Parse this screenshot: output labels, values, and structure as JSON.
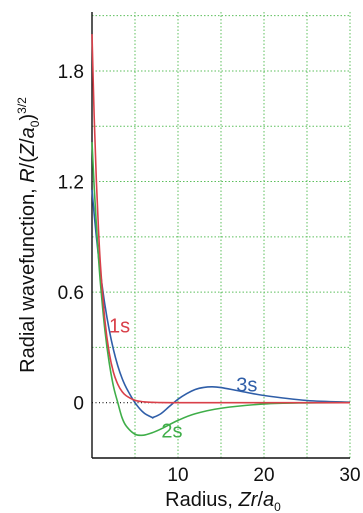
{
  "chart_data": {
    "type": "line",
    "xlabel": {
      "prefix": "Radius, ",
      "italic": "Zr",
      "mid": "/",
      "italic2": "a",
      "sub": "0"
    },
    "ylabel": {
      "prefix": "Radial wavefunction, ",
      "italic": "R",
      "mid": "/(",
      "italic2": "Z",
      "slash": "/",
      "italic3": "a",
      "sub": "0",
      "close": ")",
      "sup": "3/2"
    },
    "xlim": [
      0,
      30
    ],
    "ylim": [
      -0.3,
      2.12
    ],
    "grid": true,
    "x_ticks": [
      {
        "value": 10,
        "label": "10"
      },
      {
        "value": 20,
        "label": "20"
      },
      {
        "value": 30,
        "label": "30"
      }
    ],
    "y_ticks": [
      {
        "value": 0,
        "label": "0"
      },
      {
        "value": 0.6,
        "label": "0.6"
      },
      {
        "value": 1.2,
        "label": "1.2"
      },
      {
        "value": 1.8,
        "label": "1.8"
      }
    ],
    "series": [
      {
        "name": "1s",
        "color": "#d9404a",
        "x": [
          0,
          0.25,
          0.5,
          0.75,
          1,
          1.5,
          2,
          2.5,
          3,
          3.5,
          4,
          5,
          6,
          7,
          8,
          10,
          12,
          15,
          20,
          25,
          30
        ],
        "y": [
          2.0,
          1.558,
          1.213,
          0.945,
          0.736,
          0.446,
          0.271,
          0.164,
          0.1,
          0.06,
          0.037,
          0.013,
          0.005,
          0.002,
          0.001,
          0.0,
          0.0,
          0.0,
          0.0,
          0.0,
          0.0
        ]
      },
      {
        "name": "2s",
        "color": "#3fae49",
        "x": [
          0,
          0.25,
          0.5,
          0.75,
          1,
          1.5,
          2,
          2.5,
          3,
          3.5,
          4,
          5,
          6,
          7,
          8,
          10,
          12,
          15,
          20,
          25,
          30
        ],
        "y": [
          1.414,
          1.175,
          0.969,
          0.791,
          0.638,
          0.394,
          0.217,
          0.088,
          0.0,
          -0.082,
          -0.128,
          -0.171,
          -0.176,
          -0.163,
          -0.143,
          -0.096,
          -0.06,
          -0.03,
          -0.007,
          -0.001,
          0.0
        ]
      },
      {
        "name": "3s",
        "color": "#2f5ea8",
        "x": [
          0,
          0.25,
          0.5,
          0.75,
          1,
          1.5,
          2,
          2.5,
          3,
          3.5,
          4,
          5,
          6,
          7,
          7.1,
          8,
          9,
          10,
          11,
          12,
          13,
          14,
          15,
          17,
          20,
          25,
          30
        ],
        "y": [
          1.155,
          1.024,
          0.904,
          0.796,
          0.698,
          0.531,
          0.396,
          0.287,
          0.2,
          0.132,
          0.08,
          0.0,
          -0.054,
          -0.08,
          -0.08,
          -0.06,
          -0.02,
          0.019,
          0.049,
          0.072,
          0.083,
          0.086,
          0.082,
          0.065,
          0.039,
          0.012,
          0.003
        ]
      }
    ],
    "annotations": [
      {
        "text": "1s",
        "x": 3.2,
        "y": 0.42,
        "color": "#d9404a"
      },
      {
        "text": "2s",
        "x": 9.3,
        "y": -0.15,
        "color": "#3fae49"
      },
      {
        "text": "3s",
        "x": 18.0,
        "y": 0.1,
        "color": "#2f5ea8"
      }
    ]
  }
}
